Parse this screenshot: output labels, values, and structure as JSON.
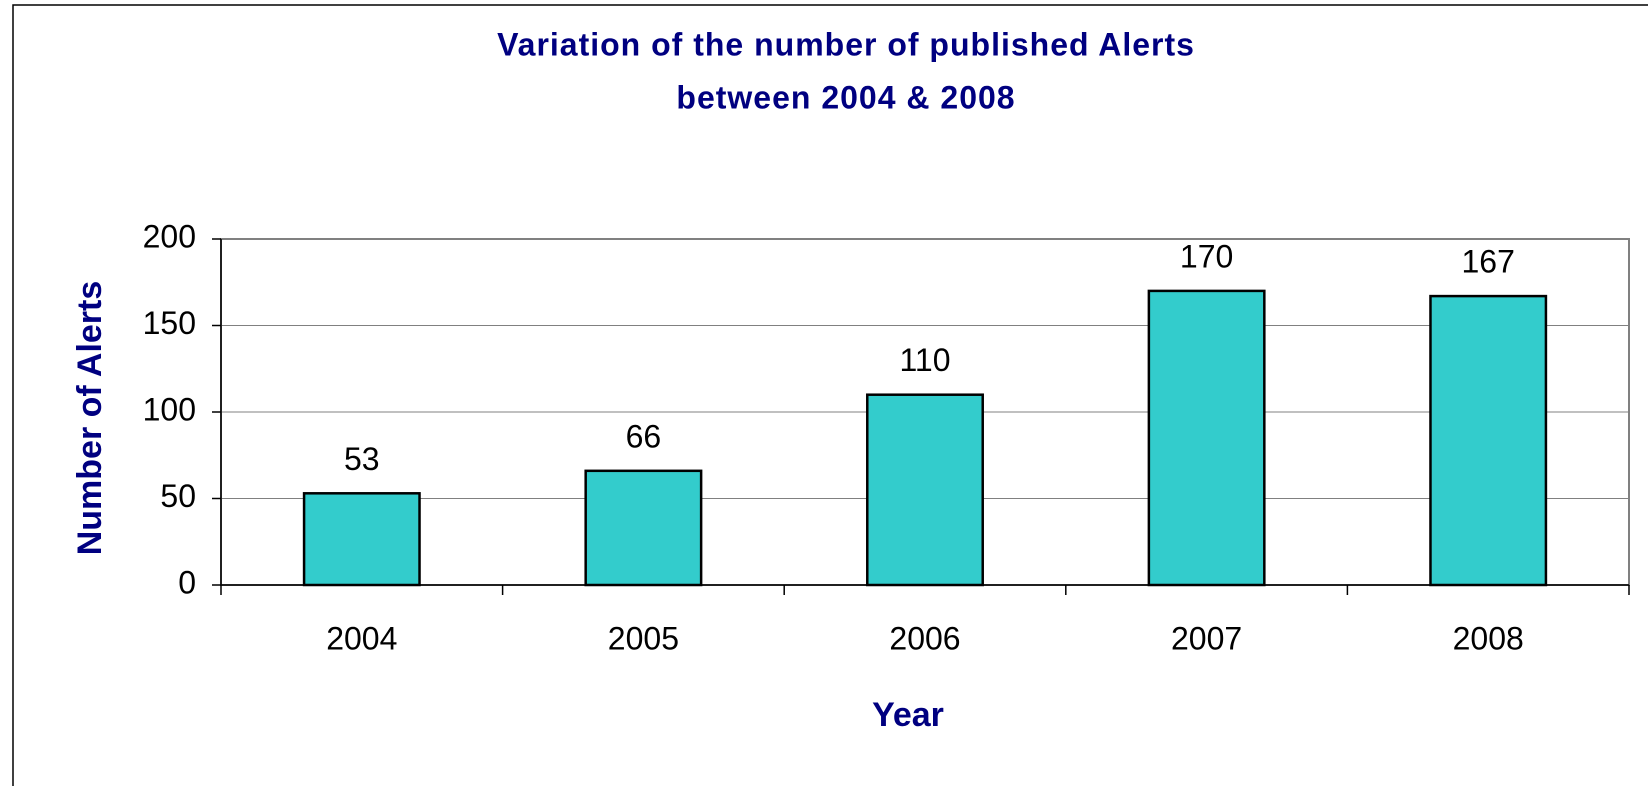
{
  "chart_data": {
    "type": "bar",
    "title": [
      "Variation of the number of published Alerts",
      "between 2004 & 2008"
    ],
    "x_label": "Year",
    "y_label": "Number of Alerts",
    "categories": [
      "2004",
      "2005",
      "2006",
      "2007",
      "2008"
    ],
    "values": [
      53,
      66,
      110,
      170,
      167
    ],
    "color": "#33cccc",
    "ylim": [
      0,
      200
    ],
    "yticks": [
      0,
      50,
      100,
      150,
      200
    ],
    "grid": true
  }
}
